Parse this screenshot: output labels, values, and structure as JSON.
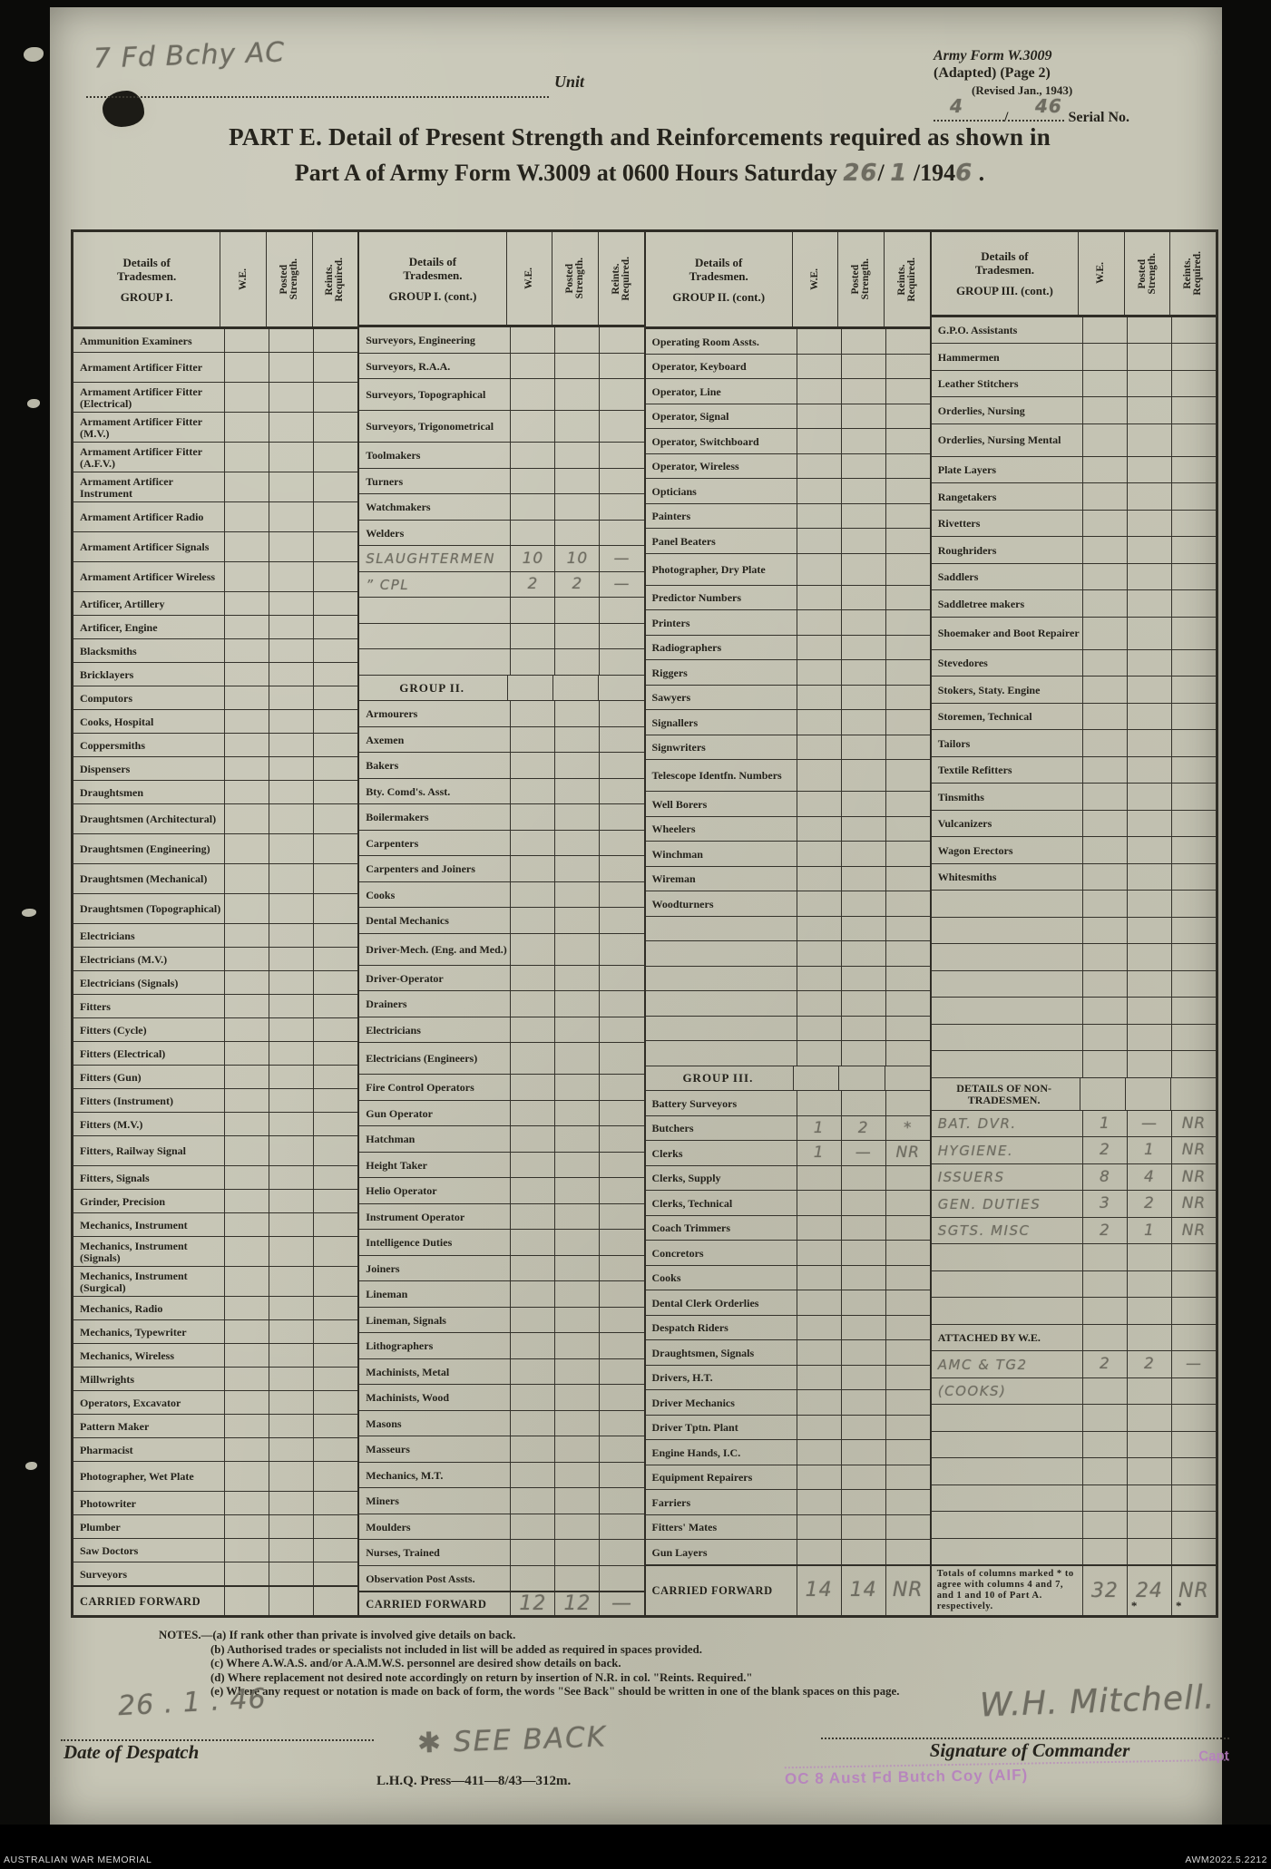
{
  "header": {
    "unit_handwritten": "7 Fd Bchy AC",
    "unit_label": "Unit",
    "form_line1": "Army Form W.3009",
    "form_line2": "(Adapted) (Page 2)",
    "form_line3": "(Revised Jan., 1943)",
    "serial_hw_1": "4",
    "serial_slash": "/",
    "serial_hw_2": "46",
    "serial_label": "Serial No.",
    "title_line1": "PART E.  Detail of Present Strength and Reinforcements required as shown in",
    "title_line2_pre": "Part A of Army Form W.3009 at 0600 Hours Saturday ",
    "title_hw_day": "26",
    "title_sep1": "/ ",
    "title_hw_month": "1",
    "title_sep2": " /194",
    "title_hw_year": "6",
    "title_end": " ."
  },
  "table": {
    "col_headers": {
      "details_l1": "Details of",
      "details_l2": "Tradesmen.",
      "we": "W.E.",
      "posted": "Posted\nStrength.",
      "reints": "Reints.\nRequired."
    },
    "groups": [
      {
        "title": "GROUP I.",
        "rows": [
          [
            "Ammunition Examiners",
            ""
          ],
          [
            "Armament Artificer Fitter",
            "2"
          ],
          [
            "Armament Artificer Fitter (Electrical)",
            "2"
          ],
          [
            "Armament Artificer Fitter (M.V.)",
            "2"
          ],
          [
            "Armament Artificer Fitter (A.F.V.)",
            "2"
          ],
          [
            "Armament Artificer Instrument",
            "2"
          ],
          [
            "Armament Artificer Radio",
            "2"
          ],
          [
            "Armament Artificer Signals",
            "2"
          ],
          [
            "Armament Artificer Wireless",
            "2"
          ],
          [
            "Artificer, Artillery",
            ""
          ],
          [
            "Artificer, Engine",
            ""
          ],
          [
            "Blacksmiths",
            ""
          ],
          [
            "Bricklayers",
            ""
          ],
          [
            "Computors",
            ""
          ],
          [
            "Cooks, Hospital",
            ""
          ],
          [
            "Coppersmiths",
            ""
          ],
          [
            "Dispensers",
            ""
          ],
          [
            "Draughtsmen",
            ""
          ],
          [
            "Draughtsmen (Architectural)",
            "2"
          ],
          [
            "Draughtsmen (Engineering)",
            "2"
          ],
          [
            "Draughtsmen (Mechanical)",
            "2"
          ],
          [
            "Draughtsmen (Topographical)",
            "2"
          ],
          [
            "Electricians",
            ""
          ],
          [
            "Electricians (M.V.)",
            ""
          ],
          [
            "Electricians (Signals)",
            ""
          ],
          [
            "Fitters",
            ""
          ],
          [
            "Fitters (Cycle)",
            ""
          ],
          [
            "Fitters (Electrical)",
            ""
          ],
          [
            "Fitters (Gun)",
            ""
          ],
          [
            "Fitters (Instrument)",
            ""
          ],
          [
            "Fitters (M.V.)",
            ""
          ],
          [
            "Fitters, Railway Signal",
            "2"
          ],
          [
            "Fitters, Signals",
            ""
          ],
          [
            "Grinder, Precision",
            ""
          ],
          [
            "Mechanics, Instrument",
            ""
          ],
          [
            "Mechanics, Instrument (Signals)",
            "2"
          ],
          [
            "Mechanics, Instrument (Surgical)",
            "2"
          ],
          [
            "Mechanics, Radio",
            ""
          ],
          [
            "Mechanics, Typewriter",
            ""
          ],
          [
            "Mechanics, Wireless",
            ""
          ],
          [
            "Millwrights",
            ""
          ],
          [
            "Operators, Excavator",
            ""
          ],
          [
            "Pattern  Maker",
            ""
          ],
          [
            "Pharmacist",
            ""
          ],
          [
            "Photographer, Wet Plate",
            "2"
          ],
          [
            "Photowriter",
            ""
          ],
          [
            "Plumber",
            ""
          ],
          [
            "Saw Doctors",
            ""
          ],
          [
            "Surveyors",
            ""
          ],
          [
            "CARRIED FORWARD",
            "cf",
            "",
            "",
            ""
          ]
        ]
      },
      {
        "title": "GROUP I. (cont.)",
        "rows": [
          [
            "Surveyors, Engineering",
            ""
          ],
          [
            "Surveyors, R.A.A.",
            ""
          ],
          [
            "Surveyors, Topographical",
            "2"
          ],
          [
            "Surveyors, Trigonometrical",
            "2"
          ],
          [
            "Toolmakers",
            ""
          ],
          [
            "Turners",
            ""
          ],
          [
            "Watchmakers",
            ""
          ],
          [
            "Welders",
            ""
          ],
          [
            "SLAUGHTERMEN",
            "hw",
            "10",
            "10",
            "—"
          ],
          [
            "”  CPL",
            "hw",
            "2",
            "2",
            "—"
          ],
          [
            "",
            "b"
          ],
          [
            "",
            "b"
          ],
          [
            "",
            "b"
          ],
          [
            "GROUP II.",
            "h"
          ],
          [
            "Armourers",
            ""
          ],
          [
            "Axemen",
            ""
          ],
          [
            "Bakers",
            ""
          ],
          [
            "Bty. Comd's. Asst.",
            ""
          ],
          [
            "Boilermakers",
            ""
          ],
          [
            "Carpenters",
            ""
          ],
          [
            "Carpenters and Joiners",
            ""
          ],
          [
            "Cooks",
            ""
          ],
          [
            "Dental Mechanics",
            ""
          ],
          [
            "Driver-Mech. (Eng. and Med.)",
            "2"
          ],
          [
            "Driver-Operator",
            ""
          ],
          [
            "Drainers",
            ""
          ],
          [
            "Electricians",
            ""
          ],
          [
            "Electricians (Engineers)",
            "2"
          ],
          [
            "Fire Control Operators",
            ""
          ],
          [
            "Gun Operator",
            ""
          ],
          [
            "Hatchman",
            ""
          ],
          [
            "Height Taker",
            ""
          ],
          [
            "Helio Operator",
            ""
          ],
          [
            "Instrument Operator",
            ""
          ],
          [
            "Intelligence Duties",
            ""
          ],
          [
            "Joiners",
            ""
          ],
          [
            "Lineman",
            ""
          ],
          [
            "Lineman, Signals",
            ""
          ],
          [
            "Lithographers",
            ""
          ],
          [
            "Machinists, Metal",
            ""
          ],
          [
            "Machinists, Wood",
            ""
          ],
          [
            "Masons",
            ""
          ],
          [
            "Masseurs",
            ""
          ],
          [
            "Mechanics, M.T.",
            ""
          ],
          [
            "Miners",
            ""
          ],
          [
            "Moulders",
            ""
          ],
          [
            "Nurses, Trained",
            ""
          ],
          [
            "Observation Post Assts.",
            ""
          ],
          [
            "CARRIED FORWARD",
            "cf",
            "12",
            "12",
            "—"
          ]
        ]
      },
      {
        "title": "GROUP II. (cont.)",
        "rows": [
          [
            "Operating Room Assts.",
            ""
          ],
          [
            "Operator, Keyboard",
            ""
          ],
          [
            "Operator, Line",
            ""
          ],
          [
            "Operator, Signal",
            ""
          ],
          [
            "Operator, Switchboard",
            ""
          ],
          [
            "Operator, Wireless",
            ""
          ],
          [
            "Opticians",
            ""
          ],
          [
            "Painters",
            ""
          ],
          [
            "Panel Beaters",
            ""
          ],
          [
            "Photographer, Dry Plate",
            "2"
          ],
          [
            "Predictor Numbers",
            ""
          ],
          [
            "Printers",
            ""
          ],
          [
            "Radiographers",
            ""
          ],
          [
            "Riggers",
            ""
          ],
          [
            "Sawyers",
            ""
          ],
          [
            "Signallers",
            ""
          ],
          [
            "Signwriters",
            ""
          ],
          [
            "Telescope Identfn. Numbers",
            "2"
          ],
          [
            "Well Borers",
            ""
          ],
          [
            "Wheelers",
            ""
          ],
          [
            "Winchman",
            ""
          ],
          [
            "Wireman",
            ""
          ],
          [
            "Woodturners",
            ""
          ],
          [
            "",
            "b"
          ],
          [
            "",
            "b"
          ],
          [
            "",
            "b"
          ],
          [
            "",
            "b"
          ],
          [
            "",
            "b"
          ],
          [
            "",
            "b"
          ],
          [
            "GROUP III.",
            "h"
          ],
          [
            "Battery Surveyors",
            ""
          ],
          [
            "Butchers",
            "",
            "1",
            "2",
            "*"
          ],
          [
            "Clerks",
            "",
            "1",
            "—",
            "NR"
          ],
          [
            "Clerks, Supply",
            ""
          ],
          [
            "Clerks, Technical",
            ""
          ],
          [
            "Coach Trimmers",
            ""
          ],
          [
            "Concretors",
            ""
          ],
          [
            "Cooks",
            ""
          ],
          [
            "Dental Clerk Orderlies",
            ""
          ],
          [
            "Despatch Riders",
            ""
          ],
          [
            "Draughtsmen, Signals",
            ""
          ],
          [
            "Drivers, H.T.",
            ""
          ],
          [
            "Driver Mechanics",
            ""
          ],
          [
            "Driver Tptn. Plant",
            ""
          ],
          [
            "Engine Hands, I.C.",
            ""
          ],
          [
            "Equipment Repairers",
            ""
          ],
          [
            "Farriers",
            ""
          ],
          [
            "Fitters' Mates",
            ""
          ],
          [
            "Gun Layers",
            ""
          ],
          [
            "CARRIED FORWARD",
            "cf",
            "14",
            "14",
            "NR"
          ]
        ]
      },
      {
        "title": "GROUP III. (cont.)",
        "rows": [
          [
            "G.P.O. Assistants",
            ""
          ],
          [
            "Hammermen",
            ""
          ],
          [
            "Leather Stitchers",
            ""
          ],
          [
            "Orderlies, Nursing",
            ""
          ],
          [
            "Orderlies, Nursing Mental",
            "2"
          ],
          [
            "Plate Layers",
            ""
          ],
          [
            "Rangetakers",
            ""
          ],
          [
            "Rivetters",
            ""
          ],
          [
            "Roughriders",
            ""
          ],
          [
            "Saddlers",
            ""
          ],
          [
            "Saddletree makers",
            ""
          ],
          [
            "Shoemaker and Boot Repairer",
            "2"
          ],
          [
            "Stevedores",
            ""
          ],
          [
            "Stokers, Staty. Engine",
            ""
          ],
          [
            "Storemen, Technical",
            ""
          ],
          [
            "Tailors",
            ""
          ],
          [
            "Textile Refitters",
            ""
          ],
          [
            "Tinsmiths",
            ""
          ],
          [
            "Vulcanizers",
            ""
          ],
          [
            "Wagon Erectors",
            ""
          ],
          [
            "Whitesmiths",
            ""
          ],
          [
            "",
            "b"
          ],
          [
            "",
            "b"
          ],
          [
            "",
            "b"
          ],
          [
            "",
            "b"
          ],
          [
            "",
            "b"
          ],
          [
            "",
            "b"
          ],
          [
            "",
            "b"
          ],
          [
            "DETAILS OF NON-TRADESMEN.",
            "h2"
          ],
          [
            "BAT. DVR.",
            "hw",
            "1",
            "—",
            "NR"
          ],
          [
            "HYGIENE.",
            "hw",
            "2",
            "1",
            "NR"
          ],
          [
            "ISSUERS",
            "hw",
            "8",
            "4",
            "NR"
          ],
          [
            "GEN. DUTIES",
            "hw",
            "3",
            "2",
            "NR"
          ],
          [
            "SGTS. MISC",
            "hw",
            "2",
            "1",
            "NR"
          ],
          [
            "",
            "b"
          ],
          [
            "",
            "b"
          ],
          [
            "",
            "b"
          ],
          [
            "ATTACHED BY W.E.",
            "h3"
          ],
          [
            "AMC & TG2",
            "hw",
            "2",
            "2",
            "—"
          ],
          [
            "(COOKS)",
            "hw",
            "",
            "",
            ""
          ],
          [
            "",
            "b"
          ],
          [
            "",
            "b"
          ],
          [
            "",
            "b"
          ],
          [
            "",
            "b"
          ],
          [
            "",
            "b"
          ],
          [
            "",
            "b"
          ],
          [
            "Totals of columns marked * to agree with columns 4 and 7, and 1 and 10 of Part A.  respectively.",
            "tot",
            "32",
            "24",
            "NR"
          ]
        ]
      }
    ]
  },
  "notes": [
    "NOTES.—(a) If rank other than private is involved give details on back.",
    "(b) Authorised trades or specialists not included in list will be added as required in spaces provided.",
    "(c) Where A.W.A.S. and/or A.A.M.W.S. personnel are desired show details on back.",
    "(d) Where replacement not desired note accordingly on return by insertion of N.R. in col. \"Reints. Required.\"",
    "(e) Where any request or notation is made on back of form, the words \"See Back\" should be written in one of the blank spaces on this page."
  ],
  "footer": {
    "despatch_hw": "26 . 1 . 46",
    "despatch_label": "Date of Despatch",
    "seeback_hw": "✱ SEE BACK",
    "signature_hw": "W.H. Mitchell.",
    "signature_label": "Signature of Commander",
    "stamp_capt": "Capt",
    "stamp_main": "OC 8 Aust Fd Butch Coy (AIF)",
    "press_line": "L.H.Q.  Press—411—8/43—312m."
  },
  "archive": {
    "left": "AUSTRALIAN WAR MEMORIAL",
    "right": "AWM2022.5.2212"
  }
}
